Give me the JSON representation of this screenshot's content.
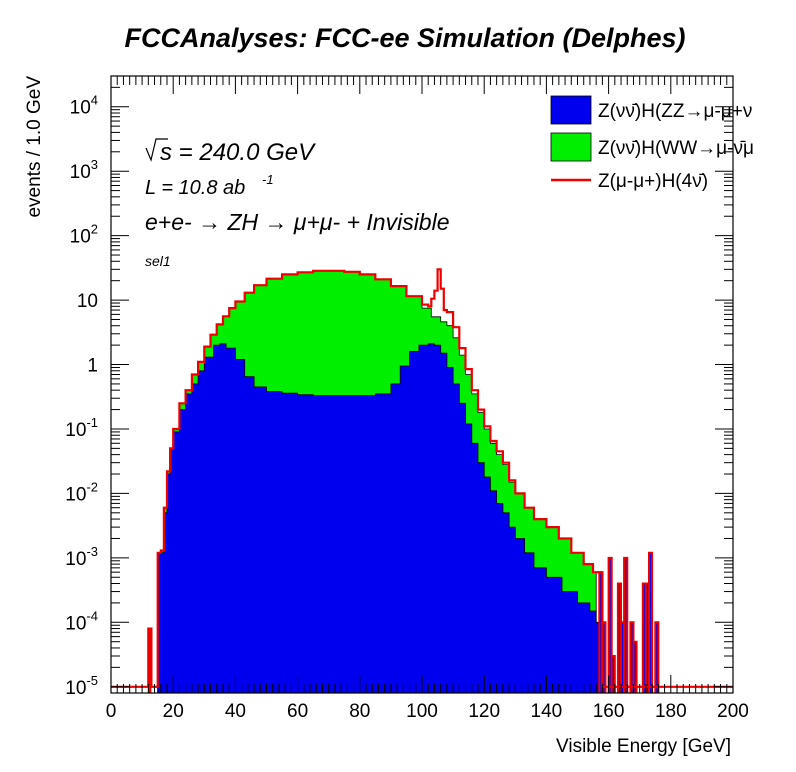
{
  "chart_data": {
    "type": "histogram",
    "title": "FCCAnalyses: FCC-ee Simulation (Delphes)",
    "xlabel": "Visible Energy [GeV]",
    "ylabel": "events / 1.0 GeV",
    "xlim": [
      0,
      200
    ],
    "ylim": [
      8e-06,
      30000
    ],
    "yscale": "log",
    "grid": false,
    "legend_position": "top-right",
    "x_ticks": [
      "0",
      "20",
      "40",
      "60",
      "80",
      "100",
      "120",
      "140",
      "160",
      "180",
      "200"
    ],
    "y_ticks": [
      {
        "base": "10",
        "exp": "-5",
        "value": 1e-05
      },
      {
        "base": "10",
        "exp": "-4",
        "value": 0.0001
      },
      {
        "base": "10",
        "exp": "-3",
        "value": 0.001
      },
      {
        "base": "10",
        "exp": "-2",
        "value": 0.01
      },
      {
        "base": "10",
        "exp": "-1",
        "value": 0.1
      },
      {
        "base": "1",
        "exp": "",
        "value": 1
      },
      {
        "base": "10",
        "exp": "",
        "value": 10
      },
      {
        "base": "10",
        "exp": "2",
        "value": 100
      },
      {
        "base": "10",
        "exp": "3",
        "value": 1000
      },
      {
        "base": "10",
        "exp": "4",
        "value": 10000
      }
    ],
    "annotations": {
      "sqrt_s": "s = 240.0 GeV",
      "lumi": "L = 10.8 ab",
      "lumi_exp": "-1",
      "process": "e+e- → ZH → μ+μ- + Invisible",
      "selection": "sel1"
    },
    "bin_width": 1.0,
    "series": [
      {
        "name": "Z(νν̄)H(ZZ→μ-μ+ν",
        "style": "filled",
        "color": "#0000ee",
        "points": [
          [
            15,
            0.0012
          ],
          [
            16,
            0.0012
          ],
          [
            17,
            0.005
          ],
          [
            18,
            0.02
          ],
          [
            19,
            0.05
          ],
          [
            20,
            0.09
          ],
          [
            22,
            0.2
          ],
          [
            24,
            0.35
          ],
          [
            26,
            0.5
          ],
          [
            28,
            0.8
          ],
          [
            30,
            1.3
          ],
          [
            33,
            2.0
          ],
          [
            35,
            2.1
          ],
          [
            37,
            1.8
          ],
          [
            40,
            1.2
          ],
          [
            43,
            0.65
          ],
          [
            46,
            0.45
          ],
          [
            50,
            0.38
          ],
          [
            55,
            0.36
          ],
          [
            60,
            0.34
          ],
          [
            65,
            0.33
          ],
          [
            70,
            0.33
          ],
          [
            75,
            0.33
          ],
          [
            80,
            0.33
          ],
          [
            85,
            0.35
          ],
          [
            90,
            0.5
          ],
          [
            93,
            0.95
          ],
          [
            96,
            1.6
          ],
          [
            99,
            2.0
          ],
          [
            102,
            2.1
          ],
          [
            104,
            2.0
          ],
          [
            106,
            1.5
          ],
          [
            108,
            0.9
          ],
          [
            110,
            0.5
          ],
          [
            112,
            0.25
          ],
          [
            114,
            0.12
          ],
          [
            116,
            0.06
          ],
          [
            118,
            0.03
          ],
          [
            120,
            0.018
          ],
          [
            122,
            0.011
          ],
          [
            124,
            0.007
          ],
          [
            126,
            0.005
          ],
          [
            128,
            0.003
          ],
          [
            130,
            0.002
          ],
          [
            133,
            0.0012
          ],
          [
            136,
            0.0007
          ],
          [
            140,
            0.0005
          ],
          [
            145,
            0.0003
          ],
          [
            150,
            0.0002
          ],
          [
            154,
            0.00015
          ],
          [
            156,
            0.0001
          ]
        ]
      },
      {
        "name": "Z(νν̄)H(WW→μ-ν̄μ",
        "style": "filled",
        "color": "#00ee00",
        "points": [
          [
            15,
            0.0012
          ],
          [
            16,
            0.0013
          ],
          [
            17,
            0.006
          ],
          [
            18,
            0.022
          ],
          [
            19,
            0.05
          ],
          [
            20,
            0.1
          ],
          [
            22,
            0.25
          ],
          [
            24,
            0.4
          ],
          [
            26,
            0.7
          ],
          [
            28,
            1.1
          ],
          [
            30,
            1.9
          ],
          [
            32,
            2.9
          ],
          [
            34,
            4.2
          ],
          [
            36,
            5.6
          ],
          [
            38,
            7.5
          ],
          [
            40,
            9.5
          ],
          [
            43,
            13
          ],
          [
            46,
            17
          ],
          [
            50,
            21.5
          ],
          [
            55,
            25
          ],
          [
            60,
            27
          ],
          [
            65,
            28.5
          ],
          [
            70,
            28.5
          ],
          [
            75,
            27.5
          ],
          [
            80,
            25
          ],
          [
            85,
            21
          ],
          [
            90,
            16.5
          ],
          [
            95,
            11.5
          ],
          [
            100,
            7.5
          ],
          [
            103,
            5.5
          ],
          [
            106,
            4.6
          ],
          [
            108,
            4.0
          ],
          [
            110,
            2.6
          ],
          [
            112,
            1.4
          ],
          [
            114,
            0.7
          ],
          [
            116,
            0.35
          ],
          [
            118,
            0.18
          ],
          [
            120,
            0.1
          ],
          [
            122,
            0.06
          ],
          [
            124,
            0.04
          ],
          [
            126,
            0.028
          ],
          [
            128,
            0.015
          ],
          [
            130,
            0.01
          ],
          [
            133,
            0.006
          ],
          [
            136,
            0.004
          ],
          [
            140,
            0.003
          ],
          [
            144,
            0.002
          ],
          [
            148,
            0.0012
          ],
          [
            152,
            0.0008
          ],
          [
            155,
            0.0006
          ]
        ]
      },
      {
        "name": "Z(μ-μ+)H(4ν̄)",
        "style": "line",
        "color": "#ee0000",
        "points": [
          [
            0,
            1e-05
          ],
          [
            11,
            1e-05
          ],
          [
            12,
            8e-05
          ],
          [
            13,
            1e-05
          ],
          [
            15,
            0.0012
          ],
          [
            16,
            0.0013
          ],
          [
            17,
            0.006
          ],
          [
            18,
            0.022
          ],
          [
            19,
            0.05
          ],
          [
            20,
            0.1
          ],
          [
            22,
            0.25
          ],
          [
            24,
            0.4
          ],
          [
            26,
            0.7
          ],
          [
            28,
            1.1
          ],
          [
            30,
            1.9
          ],
          [
            32,
            2.9
          ],
          [
            34,
            4.2
          ],
          [
            36,
            5.6
          ],
          [
            38,
            7.5
          ],
          [
            40,
            9.5
          ],
          [
            43,
            13
          ],
          [
            46,
            17
          ],
          [
            50,
            21.5
          ],
          [
            55,
            25
          ],
          [
            60,
            27
          ],
          [
            65,
            28.5
          ],
          [
            70,
            28.5
          ],
          [
            75,
            27.5
          ],
          [
            80,
            25
          ],
          [
            85,
            21
          ],
          [
            90,
            16.5
          ],
          [
            95,
            11.5
          ],
          [
            100,
            8.5
          ],
          [
            102,
            8.0
          ],
          [
            103,
            10.5
          ],
          [
            104,
            14
          ],
          [
            105,
            30
          ],
          [
            106,
            15
          ],
          [
            107,
            7.0
          ],
          [
            108,
            6.5
          ],
          [
            110,
            3.8
          ],
          [
            112,
            1.8
          ],
          [
            114,
            0.85
          ],
          [
            116,
            0.4
          ],
          [
            118,
            0.2
          ],
          [
            120,
            0.11
          ],
          [
            122,
            0.065
          ],
          [
            124,
            0.045
          ],
          [
            126,
            0.03
          ],
          [
            128,
            0.016
          ],
          [
            130,
            0.01
          ],
          [
            133,
            0.006
          ],
          [
            136,
            0.004
          ],
          [
            140,
            0.003
          ],
          [
            144,
            0.002
          ],
          [
            148,
            0.0012
          ],
          [
            152,
            0.0008
          ],
          [
            155,
            0.0006
          ],
          [
            158,
            1e-05
          ],
          [
            200,
            1e-05
          ]
        ]
      }
    ],
    "spikes": [
      {
        "x": 157,
        "value": 0.0006
      },
      {
        "x": 158,
        "value": 0.0001
      },
      {
        "x": 160,
        "value": 0.001
      },
      {
        "x": 161,
        "value": 3e-05
      },
      {
        "x": 163,
        "value": 0.0004
      },
      {
        "x": 164,
        "value": 0.0001
      },
      {
        "x": 165,
        "value": 0.001
      },
      {
        "x": 167,
        "value": 0.0001
      },
      {
        "x": 168,
        "value": 5e-05
      },
      {
        "x": 171,
        "value": 0.0004
      },
      {
        "x": 172,
        "value": 0.0004
      },
      {
        "x": 173,
        "value": 0.0012
      },
      {
        "x": 175,
        "value": 0.0001
      }
    ]
  }
}
